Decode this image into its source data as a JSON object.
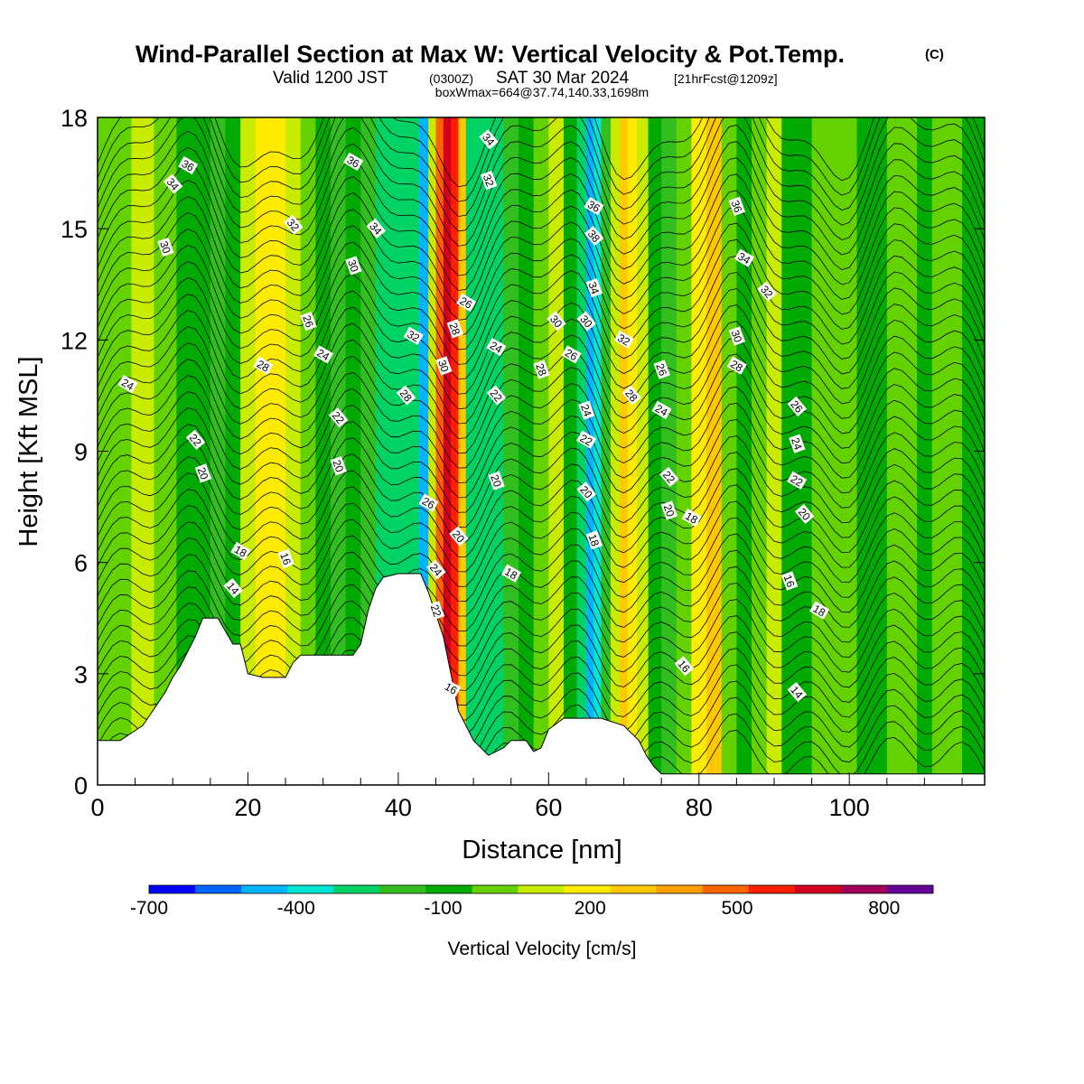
{
  "title": {
    "main": "Wind-Parallel Section at Max W: Vertical Velocity & Pot.Temp.",
    "copyright": "(C)",
    "valid_prefix": "Valid 1200 JST",
    "valid_utc": "(0300Z)",
    "valid_date": "SAT 30 Mar 2024",
    "forecast": "[21hrFcst@1209z]",
    "boxmax": "boxWmax=664@37.74,140.33,1698m"
  },
  "chart_data": {
    "type": "heatmap",
    "xlabel": "Distance [nm]",
    "ylabel": "Height [Kft MSL]",
    "xlim": [
      0,
      118
    ],
    "ylim": [
      0,
      18
    ],
    "x_ticks": [
      0,
      20,
      40,
      60,
      80,
      100
    ],
    "y_ticks": [
      0,
      3,
      6,
      9,
      12,
      15,
      18
    ],
    "x_tick_labels": [
      "0",
      "20",
      "40",
      "60",
      "80",
      "100"
    ],
    "y_tick_labels": [
      "0",
      "3",
      "6",
      "9",
      "12",
      "15",
      "18"
    ],
    "colorbar": {
      "label": "Vertical Velocity [cm/s]",
      "levels": [
        -700,
        -600,
        -500,
        -400,
        -300,
        -200,
        -100,
        0,
        100,
        200,
        300,
        400,
        500,
        600,
        700,
        800,
        900
      ],
      "tick_values": [
        -700,
        -400,
        -100,
        200,
        500,
        800
      ],
      "tick_labels": [
        "-700",
        "-400",
        "-100",
        "200",
        "500",
        "800"
      ],
      "colors": [
        "#0000ff",
        "#0064ff",
        "#00b4ff",
        "#00e6d2",
        "#00d264",
        "#32be1e",
        "#00aa00",
        "#64d200",
        "#c8eb00",
        "#ffeb00",
        "#ffc800",
        "#ffa000",
        "#ff6400",
        "#ff1e00",
        "#d2001e",
        "#a0005a",
        "#640096"
      ]
    },
    "terrain": {
      "distance_nm": [
        0,
        3,
        4.5,
        6,
        7,
        8,
        9,
        10,
        11,
        12,
        13,
        14,
        16,
        18,
        19,
        20,
        22,
        25,
        26,
        27,
        30,
        34,
        35,
        36,
        37,
        38,
        40,
        43,
        44,
        45,
        46,
        47,
        48,
        50,
        52,
        54,
        55,
        57,
        58,
        59,
        60,
        62,
        65,
        67,
        70,
        72,
        73,
        74,
        75,
        80,
        85,
        90,
        95,
        100,
        105,
        110,
        114,
        118
      ],
      "height_kft": [
        1.2,
        1.2,
        1.4,
        1.6,
        1.9,
        2.2,
        2.5,
        2.9,
        3.2,
        3.6,
        4.0,
        4.5,
        4.5,
        3.8,
        3.8,
        3.0,
        2.9,
        2.9,
        3.3,
        3.5,
        3.5,
        3.5,
        3.8,
        4.7,
        5.3,
        5.6,
        5.7,
        5.7,
        5.2,
        4.6,
        4.0,
        3.0,
        2.0,
        1.2,
        0.8,
        1.0,
        1.2,
        1.2,
        0.9,
        1.0,
        1.5,
        1.8,
        1.8,
        1.8,
        1.6,
        1.2,
        0.8,
        0.5,
        0.3,
        0.3,
        0.3,
        0.3,
        0.3,
        0.3,
        0.3,
        0.3,
        0.3,
        0.3
      ]
    },
    "w_bands": [
      {
        "x": 0,
        "w": 20
      },
      {
        "x": 3,
        "w": 60
      },
      {
        "x": 6,
        "w": 150
      },
      {
        "x": 9,
        "w": 50
      },
      {
        "x": 12,
        "w": -50
      },
      {
        "x": 14,
        "w": -100
      },
      {
        "x": 16,
        "w": -150
      },
      {
        "x": 18,
        "w": -50
      },
      {
        "x": 20,
        "w": 120
      },
      {
        "x": 22,
        "w": 200
      },
      {
        "x": 24,
        "w": 270
      },
      {
        "x": 26,
        "w": 180
      },
      {
        "x": 28,
        "w": 50
      },
      {
        "x": 30,
        "w": -80
      },
      {
        "x": 32,
        "w": -130
      },
      {
        "x": 34,
        "w": -100
      },
      {
        "x": 36,
        "w": -160
      },
      {
        "x": 38,
        "w": -220
      },
      {
        "x": 40,
        "w": -260
      },
      {
        "x": 42,
        "w": -300
      },
      {
        "x": 43.5,
        "w": -420
      },
      {
        "x": 44.5,
        "w": 150
      },
      {
        "x": 45.5,
        "w": 500
      },
      {
        "x": 46.5,
        "w": 750
      },
      {
        "x": 47.5,
        "w": 664
      },
      {
        "x": 48.5,
        "w": 380
      },
      {
        "x": 49.5,
        "w": -250
      },
      {
        "x": 51,
        "w": -220
      },
      {
        "x": 53,
        "w": -300
      },
      {
        "x": 55,
        "w": -170
      },
      {
        "x": 57,
        "w": -80
      },
      {
        "x": 59,
        "w": 60
      },
      {
        "x": 61,
        "w": 130
      },
      {
        "x": 63,
        "w": -60
      },
      {
        "x": 64.5,
        "w": -250
      },
      {
        "x": 65.5,
        "w": -450
      },
      {
        "x": 66.5,
        "w": -320
      },
      {
        "x": 67.5,
        "w": -120
      },
      {
        "x": 69,
        "w": 180
      },
      {
        "x": 70,
        "w": 330
      },
      {
        "x": 71,
        "w": 280
      },
      {
        "x": 72.5,
        "w": 100
      },
      {
        "x": 74,
        "w": -60
      },
      {
        "x": 76,
        "w": -120
      },
      {
        "x": 78,
        "w": 80
      },
      {
        "x": 80,
        "w": 250
      },
      {
        "x": 82,
        "w": 320
      },
      {
        "x": 84,
        "w": 60
      },
      {
        "x": 86,
        "w": -50
      },
      {
        "x": 88,
        "w": 30
      },
      {
        "x": 90,
        "w": 160
      },
      {
        "x": 92,
        "w": -20
      },
      {
        "x": 94,
        "w": -80
      },
      {
        "x": 96,
        "w": 30
      },
      {
        "x": 98,
        "w": 80
      },
      {
        "x": 100,
        "w": 40
      },
      {
        "x": 102,
        "w": -60
      },
      {
        "x": 104,
        "w": -40
      },
      {
        "x": 106,
        "w": 40
      },
      {
        "x": 108,
        "w": 80
      },
      {
        "x": 110,
        "w": -50
      },
      {
        "x": 112,
        "w": 60
      },
      {
        "x": 114,
        "w": 50
      },
      {
        "x": 116,
        "w": -80
      },
      {
        "x": 118,
        "w": -60
      }
    ],
    "theta_contours": [
      {
        "label": "36",
        "x": 12,
        "y": 16.7
      },
      {
        "label": "34",
        "x": 10,
        "y": 16.2
      },
      {
        "label": "30",
        "x": 9,
        "y": 14.5
      },
      {
        "label": "24",
        "x": 4,
        "y": 10.8
      },
      {
        "label": "22",
        "x": 13,
        "y": 9.3
      },
      {
        "label": "20",
        "x": 14,
        "y": 8.4
      },
      {
        "label": "18",
        "x": 19,
        "y": 6.3
      },
      {
        "label": "14",
        "x": 18,
        "y": 5.3
      },
      {
        "label": "16",
        "x": 25,
        "y": 6.1
      },
      {
        "label": "28",
        "x": 22,
        "y": 11.3
      },
      {
        "label": "32",
        "x": 26,
        "y": 15.1
      },
      {
        "label": "26",
        "x": 28,
        "y": 12.5
      },
      {
        "label": "24",
        "x": 30,
        "y": 11.6
      },
      {
        "label": "22",
        "x": 32,
        "y": 9.9
      },
      {
        "label": "20",
        "x": 32,
        "y": 8.6
      },
      {
        "label": "36",
        "x": 34,
        "y": 16.8
      },
      {
        "label": "34",
        "x": 37,
        "y": 15.0
      },
      {
        "label": "30",
        "x": 34,
        "y": 14.0
      },
      {
        "label": "32",
        "x": 42,
        "y": 12.1
      },
      {
        "label": "28",
        "x": 41,
        "y": 10.5
      },
      {
        "label": "30",
        "x": 46,
        "y": 11.3
      },
      {
        "label": "26",
        "x": 44,
        "y": 7.6
      },
      {
        "label": "24",
        "x": 45,
        "y": 5.8
      },
      {
        "label": "22",
        "x": 45,
        "y": 4.7
      },
      {
        "label": "16",
        "x": 47,
        "y": 2.6
      },
      {
        "label": "20",
        "x": 48,
        "y": 6.7
      },
      {
        "label": "28",
        "x": 47.5,
        "y": 12.3
      },
      {
        "label": "26",
        "x": 49,
        "y": 13.0
      },
      {
        "label": "34",
        "x": 52,
        "y": 17.4
      },
      {
        "label": "32",
        "x": 52,
        "y": 16.3
      },
      {
        "label": "24",
        "x": 53,
        "y": 11.8
      },
      {
        "label": "22",
        "x": 53,
        "y": 10.5
      },
      {
        "label": "20",
        "x": 53,
        "y": 8.2
      },
      {
        "label": "18",
        "x": 55,
        "y": 5.7
      },
      {
        "label": "30",
        "x": 61,
        "y": 12.5
      },
      {
        "label": "28",
        "x": 59,
        "y": 11.2
      },
      {
        "label": "26",
        "x": 63,
        "y": 11.6
      },
      {
        "label": "30",
        "x": 65,
        "y": 12.5
      },
      {
        "label": "24",
        "x": 65,
        "y": 10.1
      },
      {
        "label": "22",
        "x": 65,
        "y": 9.3
      },
      {
        "label": "20",
        "x": 65,
        "y": 7.9
      },
      {
        "label": "18",
        "x": 66,
        "y": 6.6
      },
      {
        "label": "36",
        "x": 66,
        "y": 15.6
      },
      {
        "label": "38",
        "x": 66,
        "y": 14.8
      },
      {
        "label": "34",
        "x": 66,
        "y": 13.4
      },
      {
        "label": "32",
        "x": 70,
        "y": 12.0
      },
      {
        "label": "28",
        "x": 71,
        "y": 10.5
      },
      {
        "label": "26",
        "x": 75,
        "y": 11.2
      },
      {
        "label": "24",
        "x": 75,
        "y": 10.1
      },
      {
        "label": "22",
        "x": 76,
        "y": 8.3
      },
      {
        "label": "20",
        "x": 76,
        "y": 7.4
      },
      {
        "label": "18",
        "x": 79,
        "y": 7.2
      },
      {
        "label": "16",
        "x": 78,
        "y": 3.2
      },
      {
        "label": "36",
        "x": 85,
        "y": 15.6
      },
      {
        "label": "34",
        "x": 86,
        "y": 14.2
      },
      {
        "label": "32",
        "x": 89,
        "y": 13.3
      },
      {
        "label": "30",
        "x": 85,
        "y": 12.1
      },
      {
        "label": "28",
        "x": 85,
        "y": 11.3
      },
      {
        "label": "26",
        "x": 93,
        "y": 10.2
      },
      {
        "label": "24",
        "x": 93,
        "y": 9.2
      },
      {
        "label": "22",
        "x": 93,
        "y": 8.2
      },
      {
        "label": "20",
        "x": 94,
        "y": 7.3
      },
      {
        "label": "16",
        "x": 92,
        "y": 5.5
      },
      {
        "label": "18",
        "x": 96,
        "y": 4.7
      },
      {
        "label": "14",
        "x": 93,
        "y": 2.5
      }
    ]
  }
}
